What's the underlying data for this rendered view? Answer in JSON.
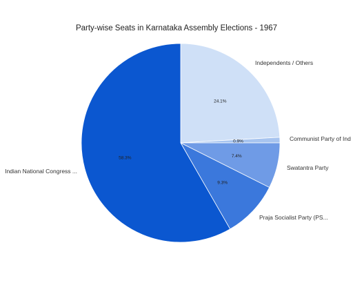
{
  "chart_data": {
    "type": "pie",
    "title": "Party-wise Seats in Karnataka Assembly Elections - 1967",
    "slices": [
      {
        "label": "Independents / Others",
        "value": 24.1,
        "pct_label": "24.1%",
        "color": "#cfe0f7"
      },
      {
        "label": "Communist Party of Ind",
        "value": 0.9,
        "pct_label": "0.9%",
        "color": "#a7c4ef"
      },
      {
        "label": "Swatantra Party",
        "value": 7.4,
        "pct_label": "7.4%",
        "color": "#6f9be6"
      },
      {
        "label": "Praja Socialist Party (PS...",
        "value": 9.3,
        "pct_label": "9.3%",
        "color": "#3b78dc"
      },
      {
        "label": "Indian National Congress ...",
        "value": 58.3,
        "pct_label": "58.3%",
        "color": "#0b57d0"
      }
    ],
    "legend": "none"
  }
}
